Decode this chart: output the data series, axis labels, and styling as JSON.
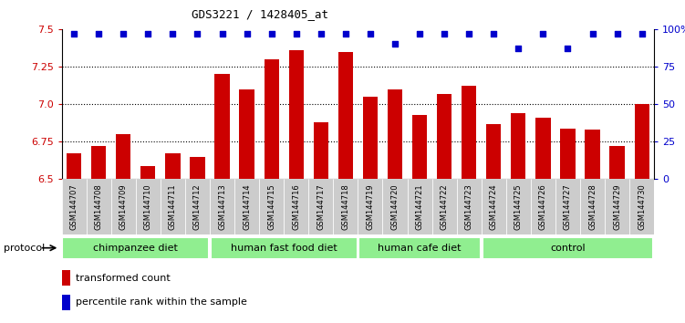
{
  "title": "GDS3221 / 1428405_at",
  "samples": [
    "GSM144707",
    "GSM144708",
    "GSM144709",
    "GSM144710",
    "GSM144711",
    "GSM144712",
    "GSM144713",
    "GSM144714",
    "GSM144715",
    "GSM144716",
    "GSM144717",
    "GSM144718",
    "GSM144719",
    "GSM144720",
    "GSM144721",
    "GSM144722",
    "GSM144723",
    "GSM144724",
    "GSM144725",
    "GSM144726",
    "GSM144727",
    "GSM144728",
    "GSM144729",
    "GSM144730"
  ],
  "bar_values": [
    6.67,
    6.72,
    6.8,
    6.59,
    6.67,
    6.65,
    7.2,
    7.1,
    7.3,
    7.36,
    6.88,
    7.35,
    7.05,
    7.1,
    6.93,
    7.07,
    7.12,
    6.87,
    6.94,
    6.91,
    6.84,
    6.83,
    6.72,
    7.0
  ],
  "percentile_values": [
    97,
    97,
    97,
    97,
    97,
    97,
    97,
    97,
    97,
    97,
    97,
    97,
    97,
    90,
    97,
    97,
    97,
    97,
    87,
    97,
    87,
    97,
    97,
    97
  ],
  "bar_color": "#cc0000",
  "percentile_color": "#0000cc",
  "ylim_left": [
    6.5,
    7.5
  ],
  "ylim_right": [
    0,
    100
  ],
  "yticks_left": [
    6.5,
    6.75,
    7.0,
    7.25,
    7.5
  ],
  "yticks_right": [
    0,
    25,
    50,
    75,
    100
  ],
  "group_boundaries": [
    0,
    6,
    12,
    17,
    24
  ],
  "group_labels": [
    "chimpanzee diet",
    "human fast food diet",
    "human cafe diet",
    "control"
  ],
  "group_color": "#90ee90",
  "protocol_label": "protocol",
  "legend_bar_label": "transformed count",
  "legend_pct_label": "percentile rank within the sample",
  "dotted_lines": [
    6.75,
    7.0,
    7.25
  ]
}
